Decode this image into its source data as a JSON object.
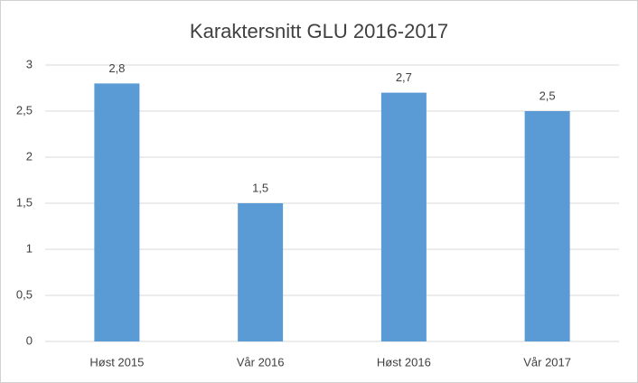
{
  "chart_data": {
    "type": "bar",
    "title": "Karaktersnitt GLU 2016-2017",
    "categories": [
      "Høst 2015",
      "Vår 2016",
      "Høst 2016",
      "Vår 2017"
    ],
    "values": [
      2.8,
      1.5,
      2.7,
      2.5
    ],
    "value_labels": [
      "2,8",
      "1,5",
      "2,7",
      "2,5"
    ],
    "color": "#5b9bd5",
    "ylim": [
      0,
      3
    ],
    "yticks": [
      0,
      {
        "value": 0.5,
        "label": "0,5"
      },
      1,
      {
        "value": 1.5,
        "label": "1,5"
      },
      2,
      {
        "value": 2.5,
        "label": "2,5"
      },
      3
    ],
    "grid": true
  }
}
